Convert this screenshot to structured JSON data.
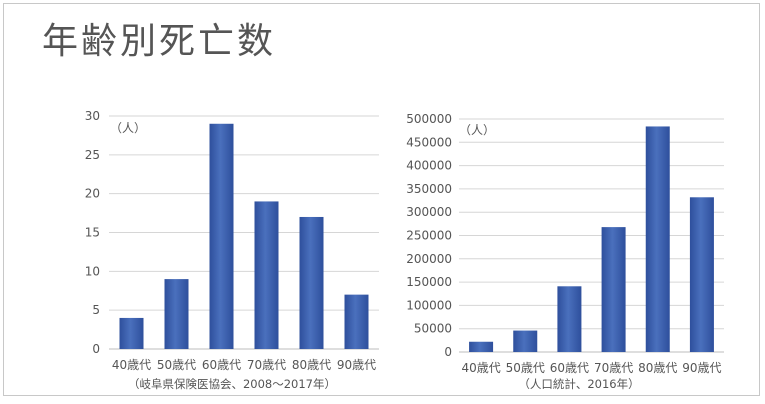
{
  "title": "年齢別死亡数",
  "chart_data": [
    {
      "type": "bar",
      "categories": [
        "40歳代",
        "50歳代",
        "60歳代",
        "70歳代",
        "80歳代",
        "90歳代"
      ],
      "values": [
        4,
        9,
        29,
        19,
        17,
        7
      ],
      "ylim": [
        0,
        30
      ],
      "yticks": [
        0,
        5,
        10,
        15,
        20,
        25,
        30
      ],
      "unit": "（人）",
      "source": "（岐阜県保険医協会、2008〜2017年）",
      "grid": true,
      "bar_color": "#3f63b0"
    },
    {
      "type": "bar",
      "categories": [
        "40歳代",
        "50歳代",
        "60歳代",
        "70歳代",
        "80歳代",
        "90歳代"
      ],
      "values": [
        22000,
        46000,
        141000,
        268000,
        484000,
        332000
      ],
      "ylim": [
        0,
        500000
      ],
      "yticks": [
        0,
        50000,
        100000,
        150000,
        200000,
        250000,
        300000,
        350000,
        400000,
        450000,
        500000
      ],
      "unit": "（人）",
      "source": "（人口統計、2016年）",
      "grid": true,
      "bar_color": "#3f63b0"
    }
  ]
}
